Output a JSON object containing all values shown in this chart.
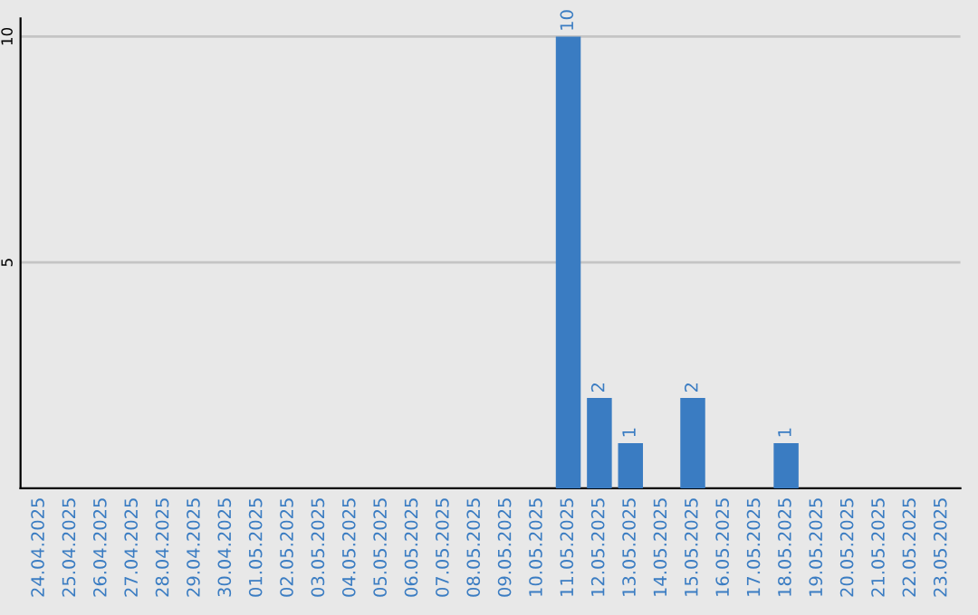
{
  "chart_data": {
    "type": "bar",
    "categories": [
      "24.04.2025",
      "25.04.2025",
      "26.04.2025",
      "27.04.2025",
      "28.04.2025",
      "29.04.2025",
      "30.04.2025",
      "01.05.2025",
      "02.05.2025",
      "03.05.2025",
      "04.05.2025",
      "05.05.2025",
      "06.05.2025",
      "07.05.2025",
      "08.05.2025",
      "09.05.2025",
      "10.05.2025",
      "11.05.2025",
      "12.05.2025",
      "13.05.2025",
      "14.05.2025",
      "15.05.2025",
      "16.05.2025",
      "17.05.2025",
      "18.05.2025",
      "19.05.2025",
      "20.05.2025",
      "21.05.2025",
      "22.05.2025",
      "23.05.2025"
    ],
    "values": [
      0,
      0,
      0,
      0,
      0,
      0,
      0,
      0,
      0,
      0,
      0,
      0,
      0,
      0,
      0,
      0,
      0,
      10,
      2,
      1,
      0,
      2,
      0,
      0,
      1,
      0,
      0,
      0,
      0,
      0
    ],
    "value_labels": [
      null,
      null,
      null,
      null,
      null,
      null,
      null,
      null,
      null,
      null,
      null,
      null,
      null,
      null,
      null,
      null,
      null,
      "10",
      "2",
      "1",
      null,
      "2",
      null,
      null,
      "1",
      null,
      null,
      null,
      null,
      null
    ],
    "color": "#3a7cc2",
    "ylim": [
      0,
      10.4
    ],
    "yticks": [
      5,
      10
    ],
    "grid": "y"
  }
}
